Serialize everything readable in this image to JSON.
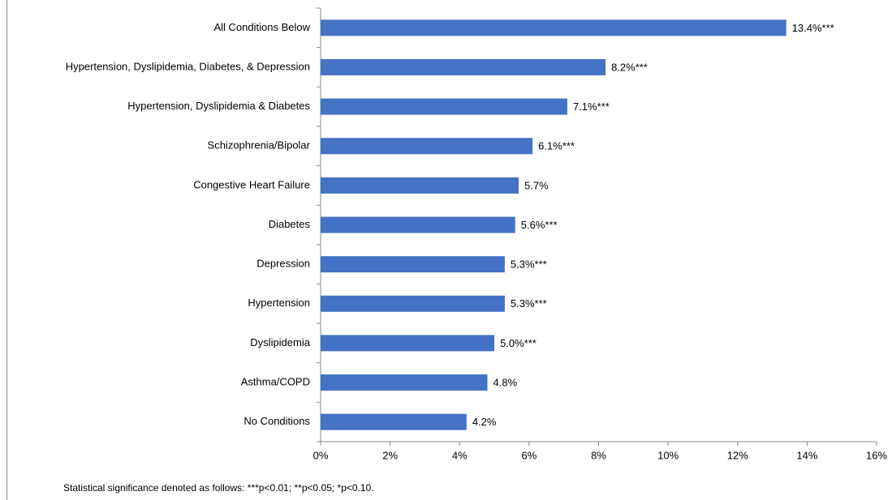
{
  "chart_data": {
    "type": "bar",
    "orientation": "horizontal",
    "categories": [
      "All Conditions Below",
      "Hypertension, Dyslipidemia, Diabetes, & Depression",
      "Hypertension, Dyslipidemia & Diabetes",
      "Schizophrenia/Bipolar",
      "Congestive Heart Failure",
      "Diabetes",
      "Depression",
      "Hypertension",
      "Dyslipidemia",
      "Asthma/COPD",
      "No Conditions"
    ],
    "values": [
      13.4,
      8.2,
      7.1,
      6.1,
      5.7,
      5.6,
      5.3,
      5.3,
      5.0,
      4.8,
      4.2
    ],
    "value_labels": [
      "13.4%***",
      "8.2%***",
      "7.1%***",
      "6.1%***",
      "5.7%",
      "5.6%***",
      "5.3%***",
      "5.3%***",
      "5.0%***",
      "4.8%",
      "4.2%"
    ],
    "color": "#4472c4",
    "xlim": [
      0,
      16
    ],
    "xticks": [
      {
        "value": 0,
        "label": "0%"
      },
      {
        "value": 2,
        "label": "2%"
      },
      {
        "value": 4,
        "label": "4%"
      },
      {
        "value": 6,
        "label": "6%"
      },
      {
        "value": 8,
        "label": "8%"
      },
      {
        "value": 10,
        "label": "10%"
      },
      {
        "value": 12,
        "label": "12%"
      },
      {
        "value": 14,
        "label": "14%"
      },
      {
        "value": 16,
        "label": "16%"
      }
    ],
    "grid": false,
    "footnote": "Statistical significance denoted as follows: ***p<0.01; **p<0.05; *p<0.10."
  }
}
